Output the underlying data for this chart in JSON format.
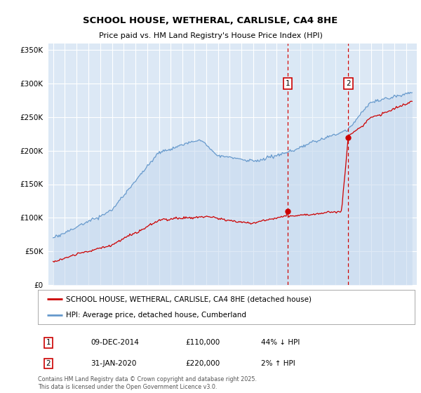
{
  "title": "SCHOOL HOUSE, WETHERAL, CARLISLE, CA4 8HE",
  "subtitle": "Price paid vs. HM Land Registry's House Price Index (HPI)",
  "red_label": "SCHOOL HOUSE, WETHERAL, CARLISLE, CA4 8HE (detached house)",
  "blue_label": "HPI: Average price, detached house, Cumberland",
  "annotation1_date": "09-DEC-2014",
  "annotation1_price": "£110,000",
  "annotation1_hpi": "44% ↓ HPI",
  "annotation2_date": "31-JAN-2020",
  "annotation2_price": "£220,000",
  "annotation2_hpi": "2% ↑ HPI",
  "footer": "Contains HM Land Registry data © Crown copyright and database right 2025.\nThis data is licensed under the Open Government Licence v3.0.",
  "ylim": [
    0,
    360000
  ],
  "yticks": [
    0,
    50000,
    100000,
    150000,
    200000,
    250000,
    300000,
    350000
  ],
  "background_color": "#ffffff",
  "plot_bg_color": "#dce8f5",
  "grid_color": "#ffffff",
  "red_line_color": "#cc0000",
  "blue_line_color": "#6699cc",
  "blue_fill_color": "#c5d8ee",
  "vline_color": "#cc0000",
  "marker1_year": 2014.92,
  "marker2_year": 2020.08,
  "sale1_price": 110000,
  "sale2_price": 220000,
  "xlim_left": 1994.6,
  "xlim_right": 2025.9
}
